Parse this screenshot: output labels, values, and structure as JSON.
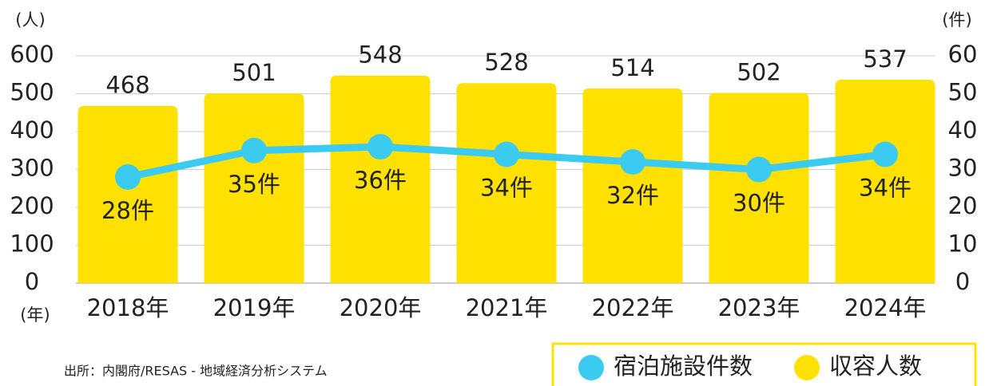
{
  "chart_data": {
    "type": "bar",
    "y_unit": "(人)",
    "y2_unit": "(件)",
    "x_unit": "(年)",
    "source": "出所：内閣府/RESAS - 地域経済分析システム",
    "categories": [
      "2018年",
      "2019年",
      "2020年",
      "2021年",
      "2022年",
      "2023年",
      "2024年"
    ],
    "series": [
      {
        "name": "宿泊施設件数",
        "type": "line",
        "axis": "y2",
        "color": "#3ccbf0",
        "values": [
          28,
          35,
          36,
          34,
          32,
          30,
          34
        ],
        "value_labels": [
          "28件",
          "35件",
          "36件",
          "34件",
          "32件",
          "30件",
          "34件"
        ]
      },
      {
        "name": "収容人数",
        "type": "bar",
        "color": "#ffe100",
        "values": [
          468,
          501,
          548,
          528,
          514,
          502,
          537
        ]
      }
    ],
    "ylim": [
      0,
      600
    ],
    "yticks": [
      0,
      100,
      200,
      300,
      400,
      500,
      600
    ],
    "y2lim": [
      0,
      60
    ],
    "y2ticks": [
      0,
      10,
      20,
      30,
      40,
      50,
      60
    ],
    "grid": true,
    "legend": "bottom-right",
    "legend_border": "#ffe100"
  }
}
